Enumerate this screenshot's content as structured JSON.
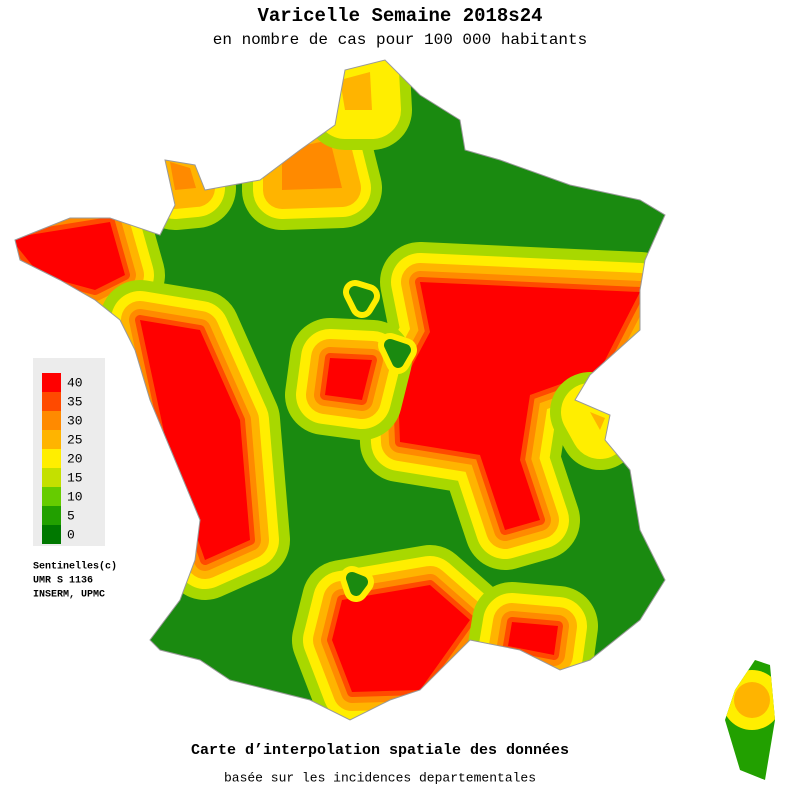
{
  "title": "Varicelle Semaine 2018s24",
  "subtitle": "en nombre de cas pour 100 000 habitants",
  "legend": {
    "ticks": [
      {
        "value": 40,
        "color": "#ff0000"
      },
      {
        "value": 35,
        "color": "#ff4a00"
      },
      {
        "value": 30,
        "color": "#ff8a00"
      },
      {
        "value": 25,
        "color": "#ffb400"
      },
      {
        "value": 20,
        "color": "#ffee00"
      },
      {
        "value": 15,
        "color": "#c4e000"
      },
      {
        "value": 10,
        "color": "#66cc00"
      },
      {
        "value": 5,
        "color": "#22a000"
      },
      {
        "value": 0,
        "color": "#007800"
      }
    ]
  },
  "credits": [
    "Sentinelles(c)",
    "UMR S 1136",
    "INSERM, UPMC"
  ],
  "footer": {
    "title": "Carte d’interpolation spatiale des données",
    "subtitle": "basée sur les incidences departementales"
  }
}
